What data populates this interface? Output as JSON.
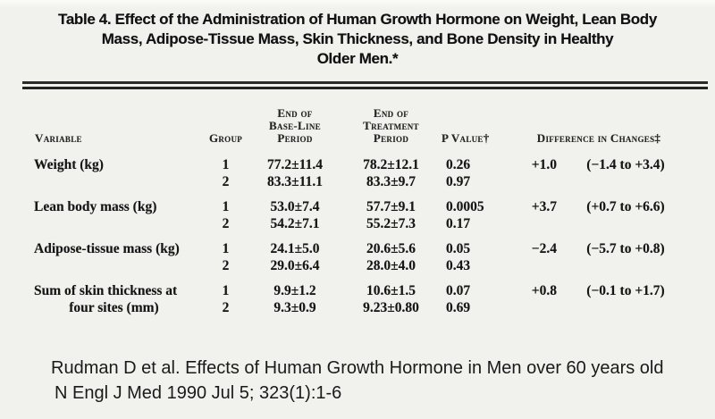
{
  "title": {
    "line1": "Table 4. Effect of the Administration of Human Growth Hormone on Weight, Lean Body",
    "line2": "Mass, Adipose-Tissue Mass, Skin Thickness, and Bone Density in Healthy",
    "line3": "Older Men.*"
  },
  "table": {
    "headers": {
      "variable": "Variable",
      "group": "Group",
      "baseline_l1": "End of",
      "baseline_l2": "Base-Line",
      "baseline_l3": "Period",
      "treatment_l1": "End of",
      "treatment_l2": "Treatment",
      "treatment_l3": "Period",
      "pvalue": "P Value†",
      "difference": "Difference in Changes‡"
    },
    "rows": [
      {
        "label1": "Weight (kg)",
        "label2": "",
        "lines": [
          {
            "group": "1",
            "baseline": "77.2±11.4",
            "treatment": "78.2±12.1",
            "p": "0.26",
            "diff": "+1.0",
            "ci": "(−1.4 to +3.4)"
          },
          {
            "group": "2",
            "baseline": "83.3±11.1",
            "treatment": "83.3±9.7",
            "p": "0.97",
            "diff": "",
            "ci": ""
          }
        ]
      },
      {
        "label1": "Lean body mass (kg)",
        "label2": "",
        "lines": [
          {
            "group": "1",
            "baseline": "53.0±7.4",
            "treatment": "57.7±9.1",
            "p": "0.0005",
            "diff": "+3.7",
            "ci": "(+0.7 to +6.6)"
          },
          {
            "group": "2",
            "baseline": "54.2±7.1",
            "treatment": "55.2±7.3",
            "p": "0.17",
            "diff": "",
            "ci": ""
          }
        ]
      },
      {
        "label1": "Adipose-tissue mass (kg)",
        "label2": "",
        "lines": [
          {
            "group": "1",
            "baseline": "24.1±5.0",
            "treatment": "20.6±5.6",
            "p": "0.05",
            "diff": "−2.4",
            "ci": "(−5.7 to +0.8)"
          },
          {
            "group": "2",
            "baseline": "29.0±6.4",
            "treatment": "28.0±4.0",
            "p": "0.43",
            "diff": "",
            "ci": ""
          }
        ]
      },
      {
        "label1": "Sum of skin thickness at",
        "label2": "four sites (mm)",
        "lines": [
          {
            "group": "1",
            "baseline": "9.9±1.2",
            "treatment": "10.6±1.5",
            "p": "0.07",
            "diff": "+0.8",
            "ci": "(−0.1 to +1.7)"
          },
          {
            "group": "2",
            "baseline": "9.3±0.9",
            "treatment": "9.23±0.80",
            "p": "0.69",
            "diff": "",
            "ci": ""
          }
        ]
      }
    ]
  },
  "citation": {
    "line1": "Rudman D et al. Effects of Human Growth Hormone in Men over 60 years old",
    "line2": "N Engl J Med 1990 Jul 5; 323(1):1-6"
  },
  "colors": {
    "background": "#f1f1ee",
    "text": "#1b1b1b",
    "rule": "#2b2b2b"
  }
}
